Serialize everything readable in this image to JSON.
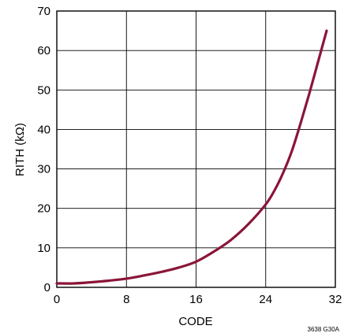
{
  "chart_data": {
    "type": "line",
    "xlabel": "CODE",
    "ylabel": "RITH (kΩ)",
    "xlim": [
      0,
      32
    ],
    "ylim": [
      0,
      70
    ],
    "xticks": [
      "0",
      "8",
      "16",
      "24",
      "32"
    ],
    "yticks": [
      "0",
      "10",
      "20",
      "30",
      "40",
      "50",
      "60",
      "70"
    ],
    "grid": true,
    "series": [
      {
        "color": "#8b1538",
        "x": [
          0,
          2,
          4,
          6,
          8,
          10,
          12,
          14,
          16,
          18,
          20,
          22,
          24,
          25,
          26,
          27,
          28,
          29,
          30,
          31
        ],
        "y": [
          1,
          1,
          1.3,
          1.7,
          2.2,
          3.0,
          3.9,
          5.0,
          6.5,
          9.0,
          12.0,
          16.0,
          21.0,
          24.5,
          29.0,
          34.5,
          41.5,
          49.0,
          57.0,
          65.0
        ]
      }
    ]
  },
  "corner_note": "3638 G30A"
}
